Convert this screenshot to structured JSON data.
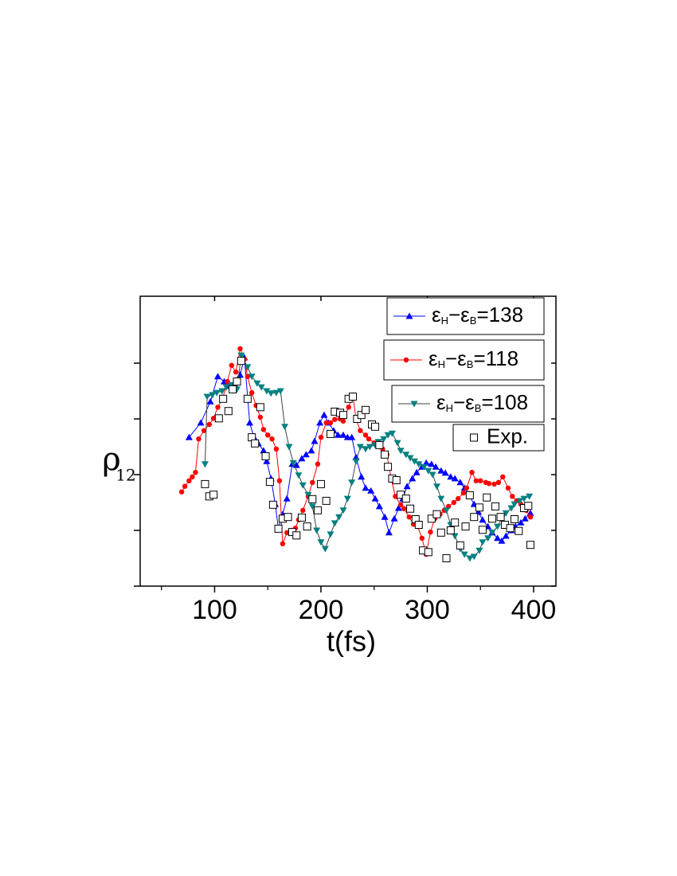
{
  "chart_data": {
    "type": "line",
    "xlabel": "t(fs)",
    "ylabel": "ρ",
    "ylabel_subscript": "12",
    "xlim": [
      30,
      421
    ],
    "ylim": [
      0,
      5.2
    ],
    "xticks": [
      100,
      200,
      300,
      400
    ],
    "xminor_ticks": [
      50,
      150,
      250,
      350
    ],
    "yticks": [
      0,
      1,
      2,
      3,
      4
    ],
    "ytick_labels": false,
    "series": [
      {
        "name": "εH−εB=138",
        "color": "#0000ff",
        "line_color": "#0000ff",
        "marker": "triangle-up",
        "line": true,
        "x": [
          76,
          87,
          96,
          103,
          109,
          114,
          119,
          124,
          128,
          133,
          137,
          141,
          146,
          149,
          153,
          157,
          160,
          164,
          168,
          173,
          177,
          182,
          186,
          191,
          194,
          199,
          203,
          207,
          212,
          216,
          221,
          225,
          229,
          233,
          238,
          242,
          247,
          251,
          255,
          260,
          264,
          269,
          273,
          277,
          281,
          286,
          290,
          295,
          299,
          304,
          308,
          313,
          317,
          322,
          326,
          331,
          335,
          340,
          344,
          348,
          352,
          357,
          361,
          366,
          370,
          374,
          379,
          383,
          388,
          392,
          397
        ],
        "values": [
          2.67,
          2.93,
          3.31,
          3.76,
          3.67,
          3.59,
          3.61,
          3.79,
          4.1,
          2.93,
          2.67,
          2.56,
          2.43,
          2.24,
          1.93,
          1.47,
          1.03,
          1.29,
          1.57,
          2.19,
          2.17,
          2.29,
          2.36,
          2.43,
          2.6,
          2.93,
          3.07,
          2.93,
          2.79,
          2.71,
          2.71,
          2.67,
          2.67,
          2.31,
          1.96,
          1.76,
          1.71,
          1.57,
          1.43,
          1.24,
          0.96,
          1.21,
          1.4,
          1.57,
          1.79,
          1.93,
          2.04,
          2.14,
          2.21,
          2.19,
          2.14,
          2.07,
          2.03,
          1.96,
          1.93,
          1.86,
          1.76,
          1.61,
          1.47,
          1.33,
          1.19,
          1.07,
          0.96,
          0.86,
          0.81,
          0.9,
          1.0,
          1.07,
          1.14,
          1.21,
          1.31
        ]
      },
      {
        "name": "εH−εB=118",
        "color": "#ff0000",
        "line_color": "#ff0000",
        "marker": "circle",
        "line": true,
        "x": [
          69,
          72,
          76,
          79,
          82,
          85,
          90,
          95,
          99,
          103,
          108,
          112,
          116,
          120,
          124,
          128,
          131,
          135,
          139,
          143,
          146,
          150,
          154,
          158,
          161,
          164,
          168,
          172,
          176,
          179,
          183,
          188,
          192,
          197,
          200,
          205,
          209,
          213,
          218,
          221,
          226,
          230,
          233,
          237,
          242,
          245,
          250,
          254,
          258,
          262,
          266,
          270,
          275,
          278,
          283,
          287,
          291,
          295,
          299,
          303,
          307,
          312,
          316,
          320,
          325,
          329,
          334,
          337,
          342,
          346,
          350,
          355,
          358,
          363,
          367,
          371,
          376,
          380,
          384,
          388,
          393,
          397
        ],
        "values": [
          1.69,
          1.79,
          1.89,
          1.96,
          2.04,
          2.64,
          2.79,
          2.9,
          3.01,
          3.21,
          3.39,
          3.67,
          3.96,
          3.84,
          4.26,
          4.07,
          3.76,
          3.47,
          3.24,
          3.03,
          2.81,
          2.71,
          2.64,
          2.46,
          1.89,
          0.76,
          0.96,
          1.0,
          1.04,
          1.19,
          1.36,
          1.61,
          1.86,
          2.19,
          2.67,
          2.93,
          2.93,
          2.99,
          3.0,
          2.96,
          3.21,
          3.43,
          3.0,
          2.79,
          2.71,
          2.64,
          2.57,
          2.53,
          2.46,
          2.36,
          1.93,
          1.61,
          1.46,
          1.39,
          1.24,
          1.11,
          1.07,
          0.86,
          0.57,
          0.97,
          1.21,
          1.29,
          1.36,
          1.43,
          1.5,
          1.57,
          1.67,
          1.76,
          2.04,
          1.89,
          1.89,
          1.86,
          1.84,
          1.83,
          1.86,
          1.96,
          1.76,
          1.61,
          1.53,
          1.47,
          1.36,
          1.24
        ]
      },
      {
        "name": "εH−εB=108",
        "color": "#008080",
        "line_color": "#404040",
        "marker": "triangle-down",
        "line": true,
        "x": [
          91,
          93,
          98,
          102,
          107,
          111,
          116,
          121,
          125,
          131,
          135,
          140,
          144,
          149,
          153,
          158,
          162,
          166,
          170,
          174,
          179,
          183,
          188,
          192,
          196,
          200,
          204,
          209,
          213,
          217,
          221,
          225,
          229,
          233,
          237,
          242,
          246,
          251,
          254,
          259,
          263,
          267,
          272,
          275,
          280,
          284,
          288,
          292,
          297,
          301,
          305,
          309,
          313,
          318,
          322,
          326,
          331,
          335,
          340,
          344,
          349,
          352,
          357,
          361,
          366,
          370,
          374,
          379,
          382,
          387,
          391,
          396
        ],
        "values": [
          2.19,
          3.4,
          3.43,
          3.47,
          3.5,
          3.57,
          3.61,
          3.53,
          4.14,
          3.93,
          3.76,
          3.64,
          3.57,
          3.5,
          3.46,
          3.47,
          3.5,
          2.86,
          2.5,
          2.21,
          1.99,
          1.81,
          1.64,
          1.43,
          1.0,
          0.79,
          0.67,
          0.93,
          1.13,
          1.24,
          1.36,
          1.57,
          1.86,
          2.24,
          2.5,
          2.46,
          2.5,
          2.53,
          2.59,
          2.64,
          2.71,
          2.74,
          2.57,
          2.43,
          2.36,
          2.3,
          2.24,
          2.19,
          2.14,
          2.07,
          2.0,
          1.79,
          1.57,
          1.36,
          1.1,
          0.9,
          0.67,
          0.57,
          0.5,
          0.53,
          0.64,
          0.79,
          0.86,
          0.96,
          1.07,
          1.21,
          1.31,
          1.4,
          1.47,
          1.53,
          1.57,
          1.61
        ]
      },
      {
        "name": "Exp.",
        "color": "#000000",
        "line_color": "#000000",
        "marker": "square-open",
        "line": false,
        "x": [
          91,
          95,
          99,
          104,
          108,
          113,
          117,
          121,
          125,
          131,
          135,
          138,
          143,
          148,
          152,
          155,
          160,
          164,
          169,
          173,
          177,
          182,
          187,
          192,
          197,
          200,
          205,
          209,
          213,
          218,
          221,
          226,
          230,
          234,
          238,
          242,
          248,
          251,
          255,
          260,
          263,
          267,
          271,
          275,
          280,
          284,
          289,
          292,
          296,
          301,
          304,
          309,
          313,
          318,
          322,
          326,
          331,
          336,
          340,
          344,
          349,
          352,
          356,
          361,
          364,
          369,
          373,
          378,
          382,
          386,
          391,
          395,
          397
        ],
        "values": [
          1.83,
          1.61,
          1.64,
          3.01,
          3.36,
          3.14,
          3.53,
          3.67,
          4.04,
          3.36,
          2.67,
          2.56,
          3.21,
          2.33,
          1.87,
          1.46,
          1.03,
          1.21,
          1.24,
          0.97,
          0.91,
          1.23,
          1.07,
          1.56,
          1.36,
          1.83,
          1.53,
          2.73,
          3.13,
          3.11,
          3.07,
          3.36,
          3.4,
          3.0,
          3.07,
          3.16,
          2.9,
          2.86,
          2.53,
          2.36,
          2.14,
          1.93,
          1.9,
          1.64,
          1.57,
          1.39,
          1.2,
          1.1,
          0.64,
          0.61,
          1.21,
          1.29,
          0.96,
          0.5,
          1.0,
          1.14,
          0.73,
          1.07,
          1.63,
          1.24,
          1.41,
          1.01,
          1.59,
          1.21,
          1.43,
          1.24,
          1.1,
          1.04,
          1.2,
          0.99,
          1.4,
          1.44,
          0.74
        ]
      }
    ]
  }
}
